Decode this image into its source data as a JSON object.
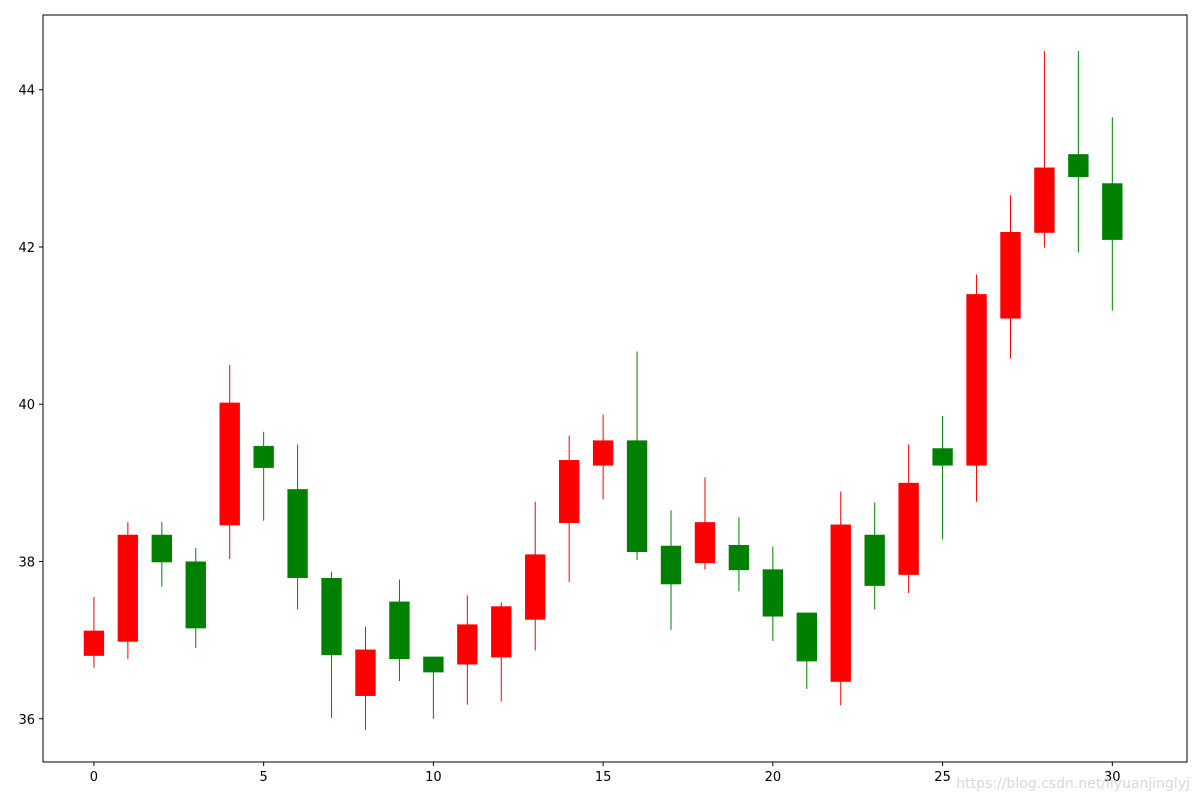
{
  "chart_data": {
    "type": "candlestick",
    "title": "",
    "xlabel": "",
    "ylabel": "",
    "xlim": [
      -1.5,
      32.2
    ],
    "ylim": [
      35.45,
      44.95
    ],
    "x_ticks": [
      0,
      5,
      10,
      15,
      20,
      25,
      30
    ],
    "y_ticks": [
      36,
      38,
      40,
      42,
      44
    ],
    "grid": false,
    "colors": {
      "up": "#ff0000",
      "down": "#008000"
    },
    "candles": [
      {
        "x": 0,
        "open": 36.8,
        "close": 37.12,
        "high": 37.55,
        "low": 36.65
      },
      {
        "x": 1,
        "open": 36.98,
        "close": 38.34,
        "high": 38.5,
        "low": 36.76
      },
      {
        "x": 2,
        "open": 38.34,
        "close": 37.99,
        "high": 38.5,
        "low": 37.68
      },
      {
        "x": 3,
        "open": 38.0,
        "close": 37.15,
        "high": 38.17,
        "low": 36.9
      },
      {
        "x": 4,
        "open": 38.46,
        "close": 40.02,
        "high": 40.5,
        "low": 38.03
      },
      {
        "x": 5,
        "open": 39.47,
        "close": 39.19,
        "high": 39.65,
        "low": 38.52
      },
      {
        "x": 6,
        "open": 38.92,
        "close": 37.79,
        "high": 39.49,
        "low": 37.39
      },
      {
        "x": 7,
        "open": 37.79,
        "close": 36.81,
        "high": 37.87,
        "low": 36.01
      },
      {
        "x": 8,
        "open": 36.29,
        "close": 36.88,
        "high": 37.17,
        "low": 35.86
      },
      {
        "x": 9,
        "open": 37.49,
        "close": 36.76,
        "high": 37.77,
        "low": 36.48
      },
      {
        "x": 10,
        "open": 36.79,
        "close": 36.59,
        "high": 36.79,
        "low": 36.0
      },
      {
        "x": 11,
        "open": 36.69,
        "close": 37.2,
        "high": 37.57,
        "low": 36.18
      },
      {
        "x": 12,
        "open": 36.78,
        "close": 37.43,
        "high": 37.48,
        "low": 36.22
      },
      {
        "x": 13,
        "open": 37.26,
        "close": 38.09,
        "high": 38.76,
        "low": 36.87
      },
      {
        "x": 14,
        "open": 38.49,
        "close": 39.29,
        "high": 39.6,
        "low": 37.74
      },
      {
        "x": 15,
        "open": 39.22,
        "close": 39.54,
        "high": 39.87,
        "low": 38.79
      },
      {
        "x": 16,
        "open": 39.54,
        "close": 38.12,
        "high": 40.67,
        "low": 38.02
      },
      {
        "x": 17,
        "open": 38.2,
        "close": 37.71,
        "high": 38.65,
        "low": 37.13
      },
      {
        "x": 18,
        "open": 37.98,
        "close": 38.5,
        "high": 39.07,
        "low": 37.9
      },
      {
        "x": 19,
        "open": 38.21,
        "close": 37.89,
        "high": 38.56,
        "low": 37.62
      },
      {
        "x": 20,
        "open": 37.9,
        "close": 37.3,
        "high": 38.19,
        "low": 36.99
      },
      {
        "x": 21,
        "open": 37.35,
        "close": 36.73,
        "high": 37.35,
        "low": 36.38
      },
      {
        "x": 22,
        "open": 36.47,
        "close": 38.47,
        "high": 38.89,
        "low": 36.17
      },
      {
        "x": 23,
        "open": 38.34,
        "close": 37.69,
        "high": 38.75,
        "low": 37.39
      },
      {
        "x": 24,
        "open": 37.83,
        "close": 39.0,
        "high": 39.49,
        "low": 37.6
      },
      {
        "x": 25,
        "open": 39.44,
        "close": 39.22,
        "high": 39.85,
        "low": 38.28
      },
      {
        "x": 26,
        "open": 39.22,
        "close": 41.4,
        "high": 41.65,
        "low": 38.76
      },
      {
        "x": 27,
        "open": 41.09,
        "close": 42.19,
        "high": 42.66,
        "low": 40.58
      },
      {
        "x": 28,
        "open": 42.18,
        "close": 43.01,
        "high": 44.49,
        "low": 41.99
      },
      {
        "x": 29,
        "open": 43.18,
        "close": 42.89,
        "high": 44.49,
        "low": 41.93
      },
      {
        "x": 30,
        "open": 42.81,
        "close": 42.09,
        "high": 43.65,
        "low": 41.19
      }
    ]
  },
  "watermark": "https://blog.csdn.net/liyuanjinglyj"
}
